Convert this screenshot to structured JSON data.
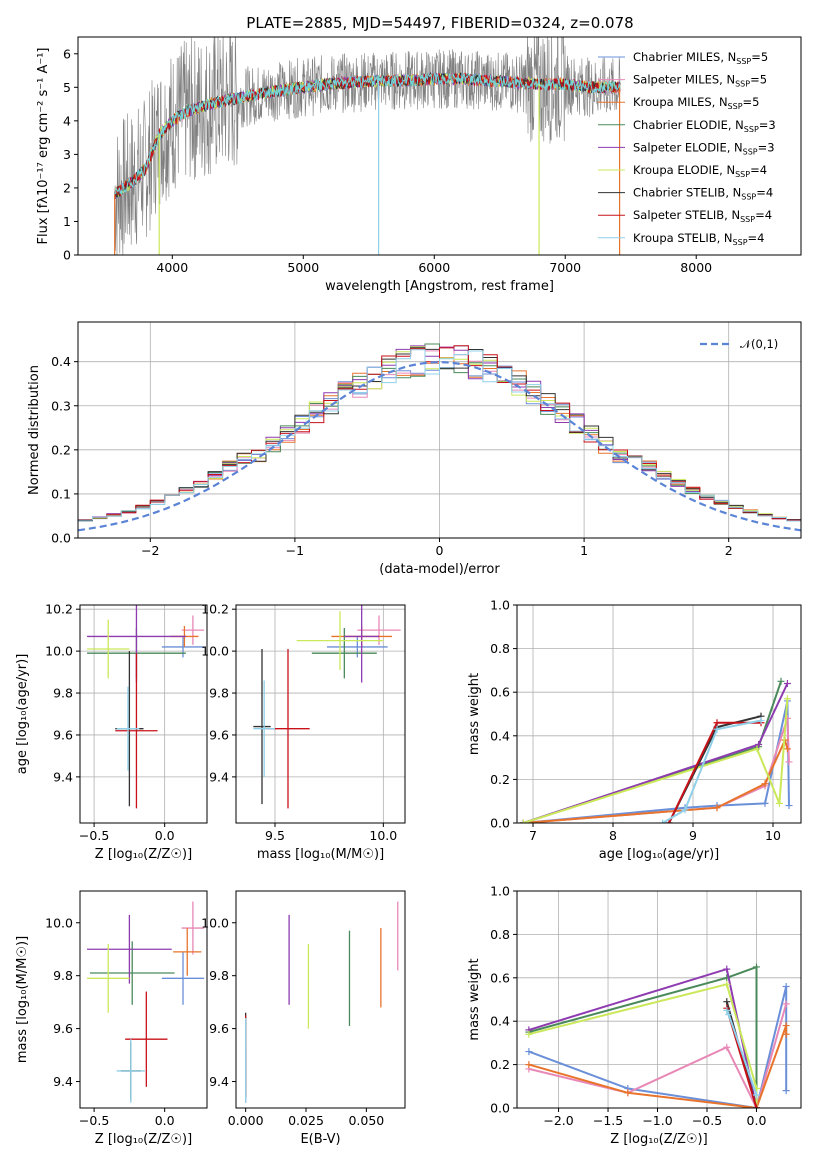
{
  "figure_title": "PLATE=2885, MJD=54497, FIBERID=0324, z=0.078",
  "colors": {
    "chabrier_miles": "#6a8fd8",
    "salpeter_miles": "#e888b6",
    "kroupa_miles": "#e8742c",
    "chabrier_elodie": "#4a8a5a",
    "salpeter_elodie": "#8e3bb0",
    "kroupa_elodie": "#cbe85a",
    "chabrier_stelib": "#333333",
    "salpeter_stelib": "#c8121a",
    "kroupa_stelib": "#8fd0e8",
    "data": "#808080",
    "model": "#72d4d8",
    "normal": "#5b84d6"
  },
  "legend": [
    {
      "key": "chabrier_miles",
      "text": "Chabrier MILES, N",
      "sub": "SSP",
      "tail": "=5"
    },
    {
      "key": "salpeter_miles",
      "text": "Salpeter MILES, N",
      "sub": "SSP",
      "tail": "=5"
    },
    {
      "key": "kroupa_miles",
      "text": "Kroupa MILES, N",
      "sub": "SSP",
      "tail": "=5"
    },
    {
      "key": "chabrier_elodie",
      "text": "Chabrier ELODIE, N",
      "sub": "SSP",
      "tail": "=3"
    },
    {
      "key": "salpeter_elodie",
      "text": "Salpeter ELODIE, N",
      "sub": "SSP",
      "tail": "=3"
    },
    {
      "key": "kroupa_elodie",
      "text": "Kroupa ELODIE, N",
      "sub": "SSP",
      "tail": "=4"
    },
    {
      "key": "chabrier_stelib",
      "text": "Chabrier STELIB, N",
      "sub": "SSP",
      "tail": "=4"
    },
    {
      "key": "salpeter_stelib",
      "text": "Salpeter STELIB, N",
      "sub": "SSP",
      "tail": "=4"
    },
    {
      "key": "kroupa_stelib",
      "text": "Kroupa STELIB, N",
      "sub": "SSP",
      "tail": "=4"
    }
  ],
  "chart_data": [
    {
      "type": "line",
      "title": "PLATE=2885, MJD=54497, FIBERID=0324, z=0.078",
      "xlabel": "wavelength [Angstrom, rest frame]",
      "ylabel": "Flux [fλ10⁻¹⁷ erg cm⁻² s⁻¹ A⁻¹]",
      "xlim": [
        3280,
        8800
      ],
      "ylim": [
        0,
        6.5
      ],
      "xticks": [
        4000,
        5000,
        6000,
        7000,
        8000
      ],
      "yticks": [
        0,
        1,
        2,
        3,
        4,
        5,
        6
      ],
      "continuum_x": [
        3560,
        3700,
        3800,
        3900,
        4000,
        4100,
        4200,
        4400,
        4600,
        4800,
        5000,
        5200,
        5400,
        5600,
        5800,
        6000,
        6200,
        6400,
        6600,
        6800,
        7000,
        7200,
        7400
      ],
      "continuum_y": [
        1.8,
        2.2,
        2.6,
        3.6,
        4.0,
        4.25,
        4.4,
        4.6,
        4.75,
        4.9,
        5.0,
        5.1,
        5.15,
        5.2,
        5.2,
        5.25,
        5.25,
        5.2,
        5.15,
        5.1,
        5.1,
        5.0,
        5.0
      ],
      "legend_position": "top-right"
    },
    {
      "type": "line",
      "xlabel": "(data-model)/error",
      "ylabel": "Normed distribution",
      "xlim": [
        -2.5,
        2.5
      ],
      "ylim": [
        0,
        0.49
      ],
      "xticks": [
        -2,
        -1,
        0,
        1,
        2
      ],
      "yticks": [
        0.0,
        0.1,
        0.2,
        0.3,
        0.4
      ],
      "series": [
        {
          "name": "𝒩(0,1)",
          "mean": 0,
          "sigma": 1
        }
      ],
      "histogram_bin_width": 0.1,
      "legend_position": "top-right",
      "grid": true
    },
    {
      "type": "scatter",
      "xlabel": "Z [log₁₀(Z/Z☉)]",
      "ylabel": "age  [log₁₀(age/yr)]",
      "xlim": [
        -0.6,
        0.3
      ],
      "ylim": [
        9.18,
        10.22
      ],
      "xticks": [
        -0.5,
        0.0
      ],
      "yticks": [
        9.4,
        9.6,
        9.8,
        10.0,
        10.2
      ],
      "points": [
        {
          "key": "chabrier_miles",
          "x": 0.13,
          "xerr": 0.15,
          "y": 10.02,
          "yerr": 0.05
        },
        {
          "key": "salpeter_miles",
          "x": 0.2,
          "xerr": 0.08,
          "y": 10.1,
          "yerr": 0.07
        },
        {
          "key": "kroupa_miles",
          "x": 0.14,
          "xerr": 0.1,
          "y": 10.07,
          "yerr": 0.05
        },
        {
          "key": "chabrier_elodie",
          "x": -0.2,
          "xerr": 0.35,
          "y": 9.99,
          "yerr": 0.12
        },
        {
          "key": "salpeter_elodie",
          "x": -0.2,
          "xerr": 0.35,
          "y": 10.07,
          "yerr": 0.22
        },
        {
          "key": "kroupa_elodie",
          "x": -0.4,
          "xerr": 0.15,
          "y": 10.01,
          "yerr": 0.14
        },
        {
          "key": "chabrier_stelib",
          "x": -0.25,
          "xerr": 0.1,
          "y": 9.63,
          "yerr": 0.37
        },
        {
          "key": "salpeter_stelib",
          "x": -0.2,
          "xerr": 0.15,
          "y": 9.62,
          "yerr": 0.37
        },
        {
          "key": "kroupa_stelib",
          "x": -0.26,
          "xerr": 0.08,
          "y": 9.63,
          "yerr": 0.2
        }
      ],
      "grid": true
    },
    {
      "type": "scatter",
      "xlabel": "mass [log₁₀(M/M☉)]",
      "ylabel": "",
      "xlim": [
        9.32,
        10.1
      ],
      "ylim": [
        9.18,
        10.22
      ],
      "xticks": [
        9.5,
        10.0
      ],
      "yticks": [
        9.4,
        9.6,
        9.8,
        10.0,
        10.2
      ],
      "points": [
        {
          "key": "chabrier_miles",
          "x": 9.88,
          "xerr": 0.14,
          "y": 10.02,
          "yerr": 0.05
        },
        {
          "key": "salpeter_miles",
          "x": 9.98,
          "xerr": 0.1,
          "y": 10.1,
          "yerr": 0.07
        },
        {
          "key": "kroupa_miles",
          "x": 9.9,
          "xerr": 0.14,
          "y": 10.07,
          "yerr": 0.05
        },
        {
          "key": "chabrier_elodie",
          "x": 9.82,
          "xerr": 0.15,
          "y": 9.99,
          "yerr": 0.12
        },
        {
          "key": "salpeter_elodie",
          "x": 9.9,
          "xerr": 0.08,
          "y": 10.07,
          "yerr": 0.22
        },
        {
          "key": "kroupa_elodie",
          "x": 9.8,
          "xerr": 0.2,
          "y": 10.05,
          "yerr": 0.14
        },
        {
          "key": "chabrier_stelib",
          "x": 9.44,
          "xerr": 0.04,
          "y": 9.64,
          "yerr": 0.37
        },
        {
          "key": "salpeter_stelib",
          "x": 9.56,
          "xerr": 0.1,
          "y": 9.63,
          "yerr": 0.38
        },
        {
          "key": "kroupa_stelib",
          "x": 9.45,
          "xerr": 0.05,
          "y": 9.63,
          "yerr": 0.23
        }
      ],
      "grid": true
    },
    {
      "type": "line",
      "xlabel": "age  [log₁₀(age/yr)]",
      "ylabel": "mass weight",
      "xlim": [
        6.8,
        10.35
      ],
      "ylim": [
        0,
        1.0
      ],
      "xticks": [
        7,
        8,
        9,
        10
      ],
      "yticks": [
        0.0,
        0.2,
        0.4,
        0.6,
        0.8,
        1.0
      ],
      "series": [
        {
          "key": "chabrier_miles",
          "x": [
            6.88,
            8.9,
            9.3,
            9.9,
            10.18,
            10.2
          ],
          "y": [
            0.0,
            0.07,
            0.08,
            0.09,
            0.56,
            0.08
          ]
        },
        {
          "key": "salpeter_miles",
          "x": [
            6.88,
            9.3,
            9.9,
            10.18,
            10.2
          ],
          "y": [
            0.0,
            0.07,
            0.17,
            0.48,
            0.28
          ]
        },
        {
          "key": "kroupa_miles",
          "x": [
            6.88,
            9.3,
            9.9,
            10.15,
            10.18
          ],
          "y": [
            0.0,
            0.07,
            0.18,
            0.38,
            0.34
          ]
        },
        {
          "key": "chabrier_elodie",
          "x": [
            6.88,
            9.82,
            10.1
          ],
          "y": [
            0.0,
            0.35,
            0.65
          ]
        },
        {
          "key": "salpeter_elodie",
          "x": [
            6.88,
            9.82,
            10.18
          ],
          "y": [
            0.0,
            0.36,
            0.64
          ]
        },
        {
          "key": "kroupa_elodie",
          "x": [
            6.88,
            9.8,
            10.08,
            10.18
          ],
          "y": [
            0.0,
            0.34,
            0.09,
            0.57
          ]
        },
        {
          "key": "chabrier_stelib",
          "x": [
            8.7,
            9.3,
            9.85
          ],
          "y": [
            0.0,
            0.44,
            0.49
          ]
        },
        {
          "key": "salpeter_stelib",
          "x": [
            8.7,
            9.3,
            9.85
          ],
          "y": [
            0.0,
            0.46,
            0.46
          ]
        },
        {
          "key": "kroupa_stelib",
          "x": [
            8.62,
            8.9,
            9.3,
            9.85
          ],
          "y": [
            0.0,
            0.06,
            0.43,
            0.47
          ]
        }
      ],
      "grid": true
    },
    {
      "type": "scatter",
      "xlabel": "Z [log₁₀(Z/Z☉)]",
      "ylabel": "mass [log₁₀(M/M☉)]",
      "xlim": [
        -0.6,
        0.3
      ],
      "ylim": [
        9.3,
        10.12
      ],
      "xticks": [
        -0.5,
        0.0
      ],
      "yticks": [
        9.4,
        9.6,
        9.8,
        10.0
      ],
      "points": [
        {
          "key": "chabrier_miles",
          "x": 0.13,
          "xerr": 0.15,
          "y": 9.79,
          "yerr": 0.1
        },
        {
          "key": "salpeter_miles",
          "x": 0.2,
          "xerr": 0.08,
          "y": 9.98,
          "yerr": 0.1
        },
        {
          "key": "kroupa_miles",
          "x": 0.16,
          "xerr": 0.1,
          "y": 9.89,
          "yerr": 0.09
        },
        {
          "key": "chabrier_elodie",
          "x": -0.23,
          "xerr": 0.3,
          "y": 9.81,
          "yerr": 0.12
        },
        {
          "key": "salpeter_elodie",
          "x": -0.25,
          "xerr": 0.3,
          "y": 9.9,
          "yerr": 0.13
        },
        {
          "key": "kroupa_elodie",
          "x": -0.4,
          "xerr": 0.15,
          "y": 9.79,
          "yerr": 0.13
        },
        {
          "key": "chabrier_stelib",
          "x": -0.24,
          "xerr": 0.07,
          "y": 9.44,
          "yerr": 0.11
        },
        {
          "key": "salpeter_stelib",
          "x": -0.13,
          "xerr": 0.15,
          "y": 9.56,
          "yerr": 0.18
        },
        {
          "key": "kroupa_stelib",
          "x": -0.24,
          "xerr": 0.1,
          "y": 9.44,
          "yerr": 0.12
        }
      ],
      "grid": false
    },
    {
      "type": "scatter",
      "xlabel": "E(B-V)",
      "ylabel": "",
      "xlim": [
        -0.004,
        0.066
      ],
      "ylim": [
        9.3,
        10.12
      ],
      "xticks": [
        0.0,
        0.025,
        0.05
      ],
      "xtick_labels": [
        "0.000",
        "0.025",
        "0.050"
      ],
      "yticks": [
        9.4,
        9.6,
        9.8,
        10.0
      ],
      "points": [
        {
          "key": "chabrier_miles",
          "x": 0.0,
          "y": 9.42,
          "yerr": 0.1
        },
        {
          "key": "salpeter_miles",
          "x": 0.063,
          "y": 9.95,
          "yerr": 0.13
        },
        {
          "key": "kroupa_miles",
          "x": 0.056,
          "y": 9.83,
          "yerr": 0.15
        },
        {
          "key": "chabrier_elodie",
          "x": 0.043,
          "y": 9.79,
          "yerr": 0.18
        },
        {
          "key": "salpeter_elodie",
          "x": 0.018,
          "y": 9.86,
          "yerr": 0.17
        },
        {
          "key": "kroupa_elodie",
          "x": 0.026,
          "y": 9.76,
          "yerr": 0.16
        },
        {
          "key": "chabrier_stelib",
          "x": 0.0,
          "y": 9.5,
          "yerr": 0.16
        },
        {
          "key": "salpeter_stelib",
          "x": 0.0,
          "y": 9.5,
          "yerr": 0.15
        },
        {
          "key": "kroupa_stelib",
          "x": 0.0,
          "y": 9.48,
          "yerr": 0.16
        }
      ],
      "grid": false
    },
    {
      "type": "line",
      "xlabel": "Z [log₁₀(Z/Z☉)]",
      "ylabel": "mass weight",
      "xlim": [
        -2.42,
        0.45
      ],
      "ylim": [
        0,
        1.0
      ],
      "xticks": [
        -2.0,
        -1.5,
        -1.0,
        -0.5,
        0.0
      ],
      "yticks": [
        0.0,
        0.2,
        0.4,
        0.6,
        0.8,
        1.0
      ],
      "series": [
        {
          "key": "chabrier_miles",
          "x": [
            -2.3,
            -1.3,
            0.0,
            0.3,
            0.3
          ],
          "y": [
            0.26,
            0.09,
            0.0,
            0.56,
            0.08
          ]
        },
        {
          "key": "salpeter_miles",
          "x": [
            -2.3,
            -1.3,
            -0.3,
            0.0,
            0.3
          ],
          "y": [
            0.18,
            0.07,
            0.28,
            0.0,
            0.48
          ]
        },
        {
          "key": "kroupa_miles",
          "x": [
            -2.3,
            -1.3,
            0.0,
            0.3,
            0.3
          ],
          "y": [
            0.2,
            0.07,
            0.0,
            0.38,
            0.34
          ]
        },
        {
          "key": "chabrier_elodie",
          "x": [
            -2.3,
            -0.3,
            0.0,
            0.0
          ],
          "y": [
            0.35,
            0.6,
            0.65,
            0.0
          ]
        },
        {
          "key": "salpeter_elodie",
          "x": [
            -2.3,
            -0.3,
            0.0
          ],
          "y": [
            0.36,
            0.64,
            0.0
          ]
        },
        {
          "key": "kroupa_elodie",
          "x": [
            -2.3,
            -0.3,
            0.0,
            0.0
          ],
          "y": [
            0.34,
            0.57,
            0.09,
            0.0
          ]
        },
        {
          "key": "chabrier_stelib",
          "x": [
            -0.3,
            0.0
          ],
          "y": [
            0.49,
            0.0
          ]
        },
        {
          "key": "salpeter_stelib",
          "x": [
            -0.3,
            0.0
          ],
          "y": [
            0.46,
            0.0
          ]
        },
        {
          "key": "kroupa_stelib",
          "x": [
            -0.3,
            -0.28,
            0.0
          ],
          "y": [
            0.45,
            0.43,
            0.06
          ]
        }
      ],
      "grid": true
    }
  ]
}
